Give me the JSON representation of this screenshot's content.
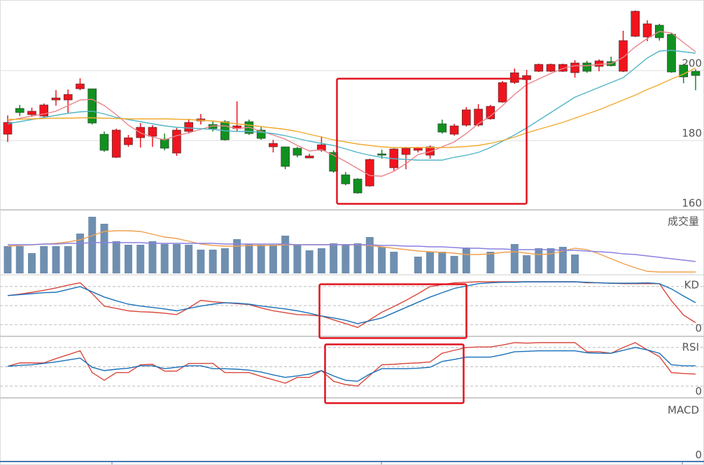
{
  "chart_data": [
    {
      "type": "candlestick",
      "open": [
        181.8,
        189.2,
        187.4,
        187,
        191.6,
        191.6,
        194.8,
        194.8,
        181.8,
        175.2,
        178.8,
        180.8,
        181.2,
        180.4,
        176.4,
        182.6,
        185.6,
        184.6,
        185.4,
        183.4,
        185.4,
        183,
        178.2,
        178.2,
        177.8,
        175,
        177.2,
        176.6,
        170.2,
        169,
        167,
        176.2,
        172.2,
        176,
        177.2,
        175.8,
        184.8,
        181.8,
        184.4,
        184.4,
        186.2,
        191,
        196.6,
        197.4,
        199.8,
        199.8,
        199.8,
        199.4,
        202.2,
        201.2,
        202.6,
        199.8,
        209.8,
        209.6,
        213,
        210.4,
        201.6,
        199.8
      ],
      "high": [
        187.2,
        190.2,
        189.4,
        190.6,
        194.4,
        194.6,
        197.8,
        194.8,
        182.6,
        183.4,
        181.6,
        185,
        184.4,
        182,
        183.6,
        186.2,
        187.6,
        185.6,
        185.8,
        191.2,
        186,
        184,
        180.2,
        178.2,
        178.2,
        176.2,
        181.2,
        177.2,
        171,
        169.2,
        174.8,
        177.4,
        177.8,
        178.2,
        178.2,
        178.6,
        186,
        184.8,
        189.6,
        190.4,
        190.2,
        197,
        200.6,
        200.2,
        202,
        202,
        202,
        203,
        202.8,
        203.2,
        204,
        211.4,
        217.2,
        214.4,
        213.4,
        210.8,
        202,
        200.4
      ],
      "low": [
        179.6,
        187,
        186.8,
        186.6,
        190,
        187.8,
        194.4,
        184.6,
        176.8,
        175,
        178.2,
        178,
        178.2,
        177.2,
        175.6,
        182,
        184.6,
        182.6,
        180,
        182.6,
        181.6,
        180.2,
        176.6,
        171.8,
        175.2,
        175,
        176.8,
        170.8,
        167.2,
        164.8,
        166.8,
        174.8,
        171.4,
        171.8,
        176.6,
        174.8,
        182,
        181.4,
        184,
        184,
        186,
        190.8,
        196.2,
        197,
        199.6,
        199.6,
        199.6,
        198,
        199.4,
        199.8,
        201.2,
        199.6,
        209.6,
        208.4,
        208.6,
        199.4,
        196.4,
        194.4
      ],
      "close": [
        185.2,
        188,
        188.4,
        190.2,
        192.2,
        193.2,
        196.2,
        185,
        177.2,
        183,
        180.8,
        183.8,
        183.8,
        177.8,
        183,
        185.2,
        186.2,
        183.4,
        180.2,
        184.2,
        182,
        180.6,
        179.2,
        172.6,
        175.8,
        175.6,
        178.8,
        171.2,
        167.6,
        165,
        174.6,
        175.8,
        177.6,
        177.8,
        178,
        178.2,
        182.4,
        184.2,
        188.8,
        189,
        189.8,
        196.6,
        199.4,
        198.6,
        201.8,
        201.8,
        201.8,
        202.2,
        199.8,
        202.8,
        201.4,
        208.6,
        217,
        213.4,
        209.4,
        199.6,
        198.2,
        198.6
      ],
      "up_color": "#f0141e",
      "down_color": "#10911f",
      "ylim": [
        160,
        220
      ],
      "yticks": [
        160,
        180,
        200
      ],
      "grid": true,
      "series": [
        {
          "color": "#e8838a",
          "values": [
            185.6,
            186.4,
            187,
            187.6,
            188.4,
            190,
            191.6,
            191.8,
            190,
            187.4,
            184.4,
            182.2,
            181,
            180.2,
            181.4,
            182.2,
            183.2,
            184.2,
            184.2,
            183.4,
            183.8,
            182.6,
            181.6,
            180.4,
            178.6,
            177,
            177.4,
            175.8,
            174,
            172,
            170,
            169.8,
            171.2,
            173.4,
            176,
            176.8,
            178.2,
            179.6,
            182,
            184.8,
            187,
            190,
            193.2,
            196,
            197.6,
            199.2,
            200.6,
            201.4,
            201.4,
            201.8,
            202,
            203.8,
            206.8,
            209.2,
            211.2,
            210.8,
            208,
            205.4
          ]
        },
        {
          "color": "#52b6c6",
          "values": [
            184.8,
            185.4,
            186,
            186.6,
            187.2,
            187.8,
            188.2,
            188.4,
            187.6,
            186.6,
            186,
            185.4,
            184.8,
            184.2,
            183.8,
            183.6,
            183.4,
            183.2,
            182.8,
            182.6,
            182.6,
            182.4,
            182,
            181.4,
            180.6,
            179.8,
            179.2,
            178.6,
            177.6,
            176.6,
            175.8,
            175.2,
            174.8,
            174.6,
            174.4,
            174.4,
            174.4,
            175.2,
            175.8,
            176.6,
            178,
            179.8,
            181.6,
            183.6,
            185.8,
            188,
            190.2,
            192.4,
            193.8,
            195.2,
            196.6,
            198,
            200.8,
            203.6,
            205.6,
            205.8,
            205.4,
            205
          ]
        },
        {
          "color": "#f0aa30",
          "values": [
            186,
            186.1,
            186.2,
            186.3,
            186.4,
            186.4,
            186.5,
            186.5,
            186.4,
            186.3,
            186.2,
            186.2,
            186.2,
            186.2,
            186.1,
            186,
            185.8,
            185.6,
            185.2,
            184.8,
            184.4,
            184,
            183.6,
            183.2,
            182.6,
            181.8,
            181,
            180.2,
            179.6,
            179,
            178.6,
            178.2,
            178,
            178,
            178,
            178,
            178,
            178.1,
            178.3,
            178.6,
            179.2,
            180,
            181,
            182.2,
            183.2,
            184.2,
            185.2,
            186.4,
            187.6,
            188.8,
            190.2,
            191.6,
            193,
            194.6,
            196,
            197.6,
            199,
            200.8
          ]
        }
      ]
    },
    {
      "type": "bar",
      "title": "成交量",
      "color": "#6f8fb0",
      "ylim": [
        0,
        90
      ],
      "values": [
        39,
        39,
        29,
        39,
        39,
        39,
        57,
        81,
        71,
        46,
        41,
        41,
        46,
        42,
        42,
        41,
        34,
        34,
        36,
        49,
        42,
        41,
        41,
        54,
        41,
        33,
        36,
        43,
        42,
        43,
        52,
        38,
        31,
        null,
        24,
        31,
        31,
        25,
        37,
        null,
        31,
        null,
        42,
        26,
        36,
        36,
        38,
        27,
        null,
        null,
        null,
        null,
        null,
        null,
        null,
        null,
        null,
        null
      ],
      "series": [
        {
          "color": "#f0a050",
          "values": [
            39,
            40,
            41,
            42,
            43,
            45,
            48,
            54,
            60,
            61,
            61,
            60,
            56,
            52,
            50,
            46,
            42,
            40,
            39,
            39,
            40,
            40,
            40,
            41,
            41,
            41,
            41,
            41,
            41,
            41,
            40,
            38,
            36,
            34,
            32,
            31,
            30,
            29,
            27,
            27,
            28,
            30,
            31,
            29,
            27,
            28,
            32,
            36,
            34,
            28,
            21,
            14,
            8,
            3,
            2,
            2,
            2,
            2
          ]
        },
        {
          "color": "#8a80e0",
          "values": [
            41,
            41,
            41,
            42,
            42,
            43,
            43,
            44,
            44,
            44,
            44,
            44,
            43,
            43,
            43,
            43,
            43,
            43,
            42,
            42,
            42,
            42,
            42,
            42,
            41,
            41,
            41,
            41,
            41,
            41,
            41,
            40,
            40,
            39,
            39,
            38,
            38,
            37,
            36,
            36,
            35,
            35,
            34,
            34,
            34,
            34,
            33,
            33,
            32,
            31,
            30,
            28,
            27,
            25,
            23,
            21,
            19,
            17
          ]
        }
      ]
    },
    {
      "type": "line",
      "title": "KD",
      "ylim": [
        0,
        100
      ],
      "yticks": [
        0
      ],
      "levels": [
        10,
        50,
        90
      ],
      "series": [
        {
          "color": "#d9483c",
          "values": [
            71,
            74,
            78,
            82,
            87,
            93,
            98,
            75,
            49,
            44,
            39,
            37,
            36,
            34,
            31,
            45,
            61,
            58,
            56,
            54,
            52,
            45,
            39,
            35,
            31,
            30,
            28,
            20,
            12,
            4,
            20,
            36,
            48,
            61,
            75,
            90,
            94,
            98,
            99,
            100,
            100,
            100,
            100,
            100,
            100,
            100,
            100,
            100,
            98,
            98,
            97,
            96,
            96,
            96,
            96,
            60,
            30,
            14
          ]
        },
        {
          "color": "#1a70b8",
          "values": [
            71,
            73,
            75,
            77,
            78,
            84,
            90,
            79,
            68,
            60,
            53,
            49,
            46,
            43,
            39,
            44,
            49,
            53,
            56,
            55,
            53,
            49,
            46,
            43,
            39,
            34,
            28,
            24,
            19,
            12,
            18,
            24,
            35,
            46,
            57,
            68,
            77,
            86,
            91,
            96,
            98,
            99,
            99,
            100,
            100,
            100,
            100,
            100,
            99,
            98,
            97,
            97,
            97,
            98,
            96,
            85,
            70,
            56
          ]
        }
      ]
    },
    {
      "type": "line",
      "title": "RSI",
      "ylim": [
        0,
        100
      ],
      "yticks": [
        0
      ],
      "levels": [
        10,
        50,
        90
      ],
      "series": [
        {
          "color": "#d9483c",
          "values": [
            51,
            58,
            58,
            58,
            67,
            75,
            83,
            38,
            22,
            38,
            38,
            54,
            55,
            41,
            41,
            57,
            57,
            57,
            38,
            38,
            38,
            30,
            23,
            16,
            28,
            28,
            42,
            20,
            13,
            10,
            32,
            54,
            55,
            57,
            58,
            60,
            78,
            84,
            90,
            91,
            91,
            95,
            100,
            99,
            100,
            100,
            100,
            100,
            81,
            81,
            78,
            90,
            100,
            85,
            71,
            38,
            36,
            35
          ]
        },
        {
          "color": "#1a70b8",
          "values": [
            51,
            53,
            54,
            57,
            60,
            64,
            68,
            49,
            42,
            45,
            47,
            52,
            52,
            46,
            49,
            52,
            52,
            46,
            46,
            45,
            43,
            39,
            33,
            28,
            31,
            35,
            42,
            31,
            22,
            20,
            35,
            46,
            46,
            46,
            47,
            49,
            61,
            65,
            70,
            70,
            70,
            75,
            81,
            82,
            83,
            83,
            83,
            83,
            79,
            78,
            78,
            84,
            90,
            85,
            78,
            54,
            52,
            52
          ]
        }
      ]
    },
    {
      "type": "line",
      "title": "MACD",
      "ylim": [
        0,
        100
      ],
      "yticks": [
        0
      ],
      "series": []
    }
  ]
}
